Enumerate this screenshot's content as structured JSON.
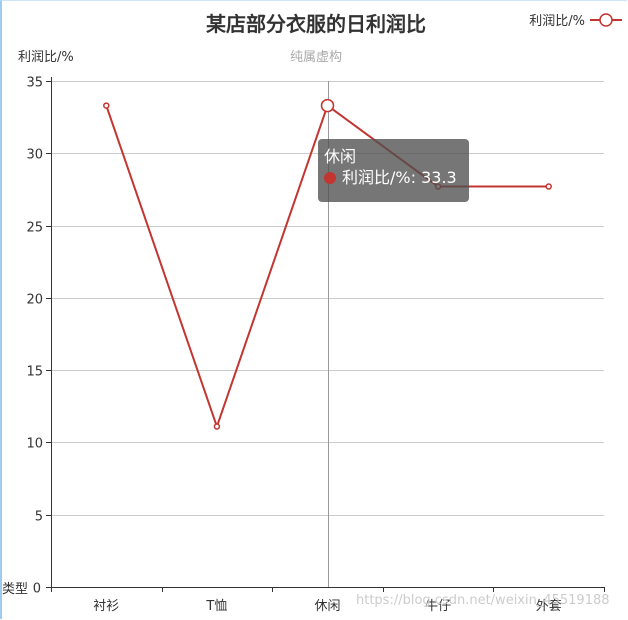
{
  "chart_data": {
    "type": "line",
    "title": "某店部分衣服的日利润比",
    "subtitle": "纯属虚构",
    "xlabel": "类型",
    "ylabel": "利润比/%",
    "categories": [
      "衬衫",
      "T恤",
      "休闲",
      "牛仔",
      "外套"
    ],
    "series": [
      {
        "name": "利润比/%",
        "values": [
          33.3,
          11.1,
          33.3,
          27.7,
          27.7
        ]
      }
    ],
    "ylim": [
      0,
      35
    ],
    "yticks": [
      0,
      5,
      10,
      15,
      20,
      25,
      30,
      35
    ],
    "grid": true,
    "legend_position": "top-right",
    "colors": {
      "series": "#c23531",
      "grid": "#cccccc",
      "axis": "#333333"
    },
    "tooltip": {
      "category": "休闲",
      "series_name": "利润比/%",
      "value_text": "33.3",
      "separator": ": "
    }
  },
  "watermark": "https://blog.csdn.net/weixin_45519188"
}
